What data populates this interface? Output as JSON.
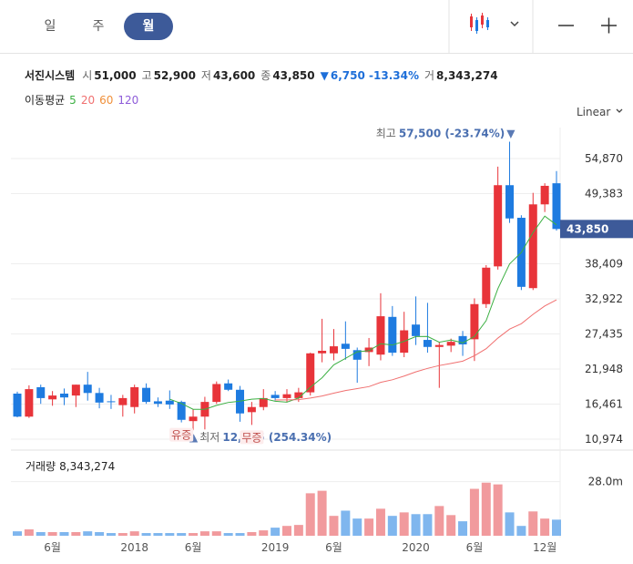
{
  "toolbar": {
    "tabs": [
      "일",
      "주",
      "월"
    ],
    "selected": 2
  },
  "chart_data": {
    "type": "candlestick",
    "title": "서진시스템",
    "summary": [
      {
        "label": "시",
        "value": "51,000"
      },
      {
        "label": "고",
        "value": "52,900"
      },
      {
        "label": "저",
        "value": "43,600"
      },
      {
        "label": "종",
        "value": "43,850"
      },
      {
        "label": "▼",
        "value": "6,750 -13.34%",
        "color": "#1e6fd9"
      },
      {
        "label": "거",
        "value": "8,343,274"
      }
    ],
    "ma_title": "이동평균",
    "scale_label": "Linear",
    "up_color": "#e8343a",
    "down_color": "#1e7be0",
    "up_volume_color": "#f19a9d",
    "down_volume_color": "#7fb6ee",
    "categories": [
      null,
      null,
      null,
      "6월",
      null,
      null,
      null,
      null,
      null,
      null,
      "2018",
      null,
      null,
      null,
      null,
      "6월",
      null,
      null,
      null,
      null,
      null,
      null,
      "2019",
      null,
      null,
      null,
      null,
      "6월",
      null,
      null,
      null,
      null,
      null,
      null,
      "2020",
      null,
      null,
      null,
      null,
      "6월",
      null,
      null,
      null,
      null,
      null,
      "12월",
      null
    ],
    "open": [
      18100,
      14500,
      19100,
      17200,
      18100,
      17800,
      19500,
      18200,
      16900,
      16300,
      16000,
      19000,
      16900,
      17000,
      16800,
      13800,
      14500,
      16800,
      19700,
      18700,
      15200,
      16000,
      17900,
      17400,
      17400,
      18300,
      24400,
      24400,
      25900,
      24900,
      24600,
      24200,
      30100,
      24500,
      28900,
      26500,
      25400,
      25600,
      27100,
      26600,
      32100,
      38000,
      50700,
      45600,
      34600,
      47700,
      51000
    ],
    "high": [
      18400,
      19400,
      19500,
      18500,
      18900,
      19500,
      21500,
      19000,
      17900,
      17900,
      19500,
      19700,
      17500,
      18600,
      17000,
      15600,
      17600,
      20000,
      20300,
      19300,
      16800,
      18800,
      18500,
      18800,
      19000,
      24500,
      29800,
      28200,
      29400,
      25300,
      26800,
      33800,
      31800,
      30900,
      33300,
      32300,
      26200,
      26700,
      27900,
      33000,
      38200,
      53600,
      57500,
      46000,
      49500,
      51000,
      52900
    ],
    "low": [
      14400,
      14300,
      16500,
      16200,
      16300,
      16000,
      17000,
      15800,
      15700,
      14500,
      15000,
      16500,
      16000,
      15700,
      13600,
      12375,
      12500,
      16500,
      18500,
      13700,
      13200,
      15500,
      17000,
      16800,
      16800,
      17800,
      23000,
      23300,
      23400,
      19800,
      22400,
      23300,
      24000,
      23800,
      25700,
      24500,
      19000,
      24600,
      24000,
      23200,
      31500,
      37500,
      44800,
      34300,
      34300,
      46500,
      43600
    ],
    "close": [
      14500,
      18800,
      17400,
      17800,
      17500,
      19500,
      18200,
      16700,
      16800,
      17400,
      19100,
      16800,
      16500,
      16400,
      14000,
      14500,
      16800,
      19600,
      18700,
      15000,
      16000,
      17400,
      17400,
      18000,
      18300,
      24400,
      24800,
      25500,
      25100,
      23400,
      25300,
      30200,
      24500,
      28000,
      27100,
      25400,
      25700,
      26200,
      25800,
      32100,
      37800,
      50700,
      45500,
      34800,
      47700,
      50600,
      43850
    ],
    "moving_averages": [
      {
        "name": "5",
        "color": "#3cb043",
        "values": [
          null,
          null,
          null,
          null,
          null,
          null,
          null,
          null,
          null,
          null,
          null,
          null,
          null,
          17240,
          16560,
          15640,
          15640,
          16260,
          16720,
          16920,
          17220,
          17340,
          16900,
          16760,
          17420,
          19100,
          20580,
          22600,
          23620,
          24640,
          24820,
          25900,
          25700,
          26280,
          27020,
          27040,
          26140,
          26480,
          26040,
          27040,
          29520,
          34520,
          38380,
          40180,
          43300,
          45860,
          44490
        ]
      },
      {
        "name": "20",
        "color": "#f07070",
        "values": [
          null,
          null,
          null,
          null,
          null,
          null,
          null,
          null,
          null,
          null,
          null,
          null,
          null,
          null,
          null,
          null,
          null,
          null,
          null,
          null,
          null,
          null,
          17105,
          17115,
          17155,
          17400,
          17730,
          18170,
          18585,
          18885,
          19195,
          19865,
          20265,
          20845,
          21500,
          22045,
          22490,
          22820,
          23175,
          24030,
          25120,
          26785,
          28190,
          29030,
          30500,
          31810,
          32763
        ]
      },
      {
        "name": "60",
        "color": "#f0903a"
      },
      {
        "name": "120",
        "color": "#8e5cd9"
      }
    ],
    "ylim": [
      9834,
      59713
    ],
    "yticks": [
      {
        "value": 10974,
        "label": "10,974"
      },
      {
        "value": 16461,
        "label": "16,461"
      },
      {
        "value": 21948,
        "label": "21,948"
      },
      {
        "value": 27435,
        "label": "27,435"
      },
      {
        "value": 32922,
        "label": "32,922"
      },
      {
        "value": 38409,
        "label": "38,409"
      },
      {
        "value": 49383,
        "label": "49,383"
      },
      {
        "value": 54870,
        "label": "54,870"
      }
    ],
    "grid": true,
    "current_price": {
      "value": 43850,
      "label": "43,850",
      "color": "#3d5a99"
    },
    "high_annotation": {
      "index": 42,
      "value": 57500,
      "label": "최고",
      "text": "57,500 (-23.74%)",
      "marker": "▼"
    },
    "low_annotation": {
      "index": 15,
      "value": 12375,
      "label": "최저",
      "text": "12,375 (254.34%)",
      "marker": "▲"
    },
    "events": [
      {
        "index": 14,
        "text": "유증"
      },
      {
        "index": 20,
        "text": "무증"
      }
    ],
    "volume": {
      "label": "거래량",
      "value_label": "8,343,274",
      "ylim": [
        0,
        42000000
      ],
      "yticks": [
        {
          "value": 28000000,
          "label": "28.0m"
        }
      ],
      "values": [
        2300000,
        3300000,
        1900000,
        1900000,
        1900000,
        1900000,
        2300000,
        1900000,
        1400000,
        1400000,
        2300000,
        1400000,
        1400000,
        1400000,
        1400000,
        1400000,
        2300000,
        2300000,
        1400000,
        1400000,
        1900000,
        2800000,
        4200000,
        5100000,
        5600000,
        22000000,
        23300000,
        10300000,
        13000000,
        8900000,
        8900000,
        14000000,
        10300000,
        12100000,
        11200000,
        11200000,
        15400000,
        10700000,
        7500000,
        24300000,
        27500000,
        26600000,
        12100000,
        5100000,
        12600000,
        8900000,
        8343274
      ]
    }
  }
}
